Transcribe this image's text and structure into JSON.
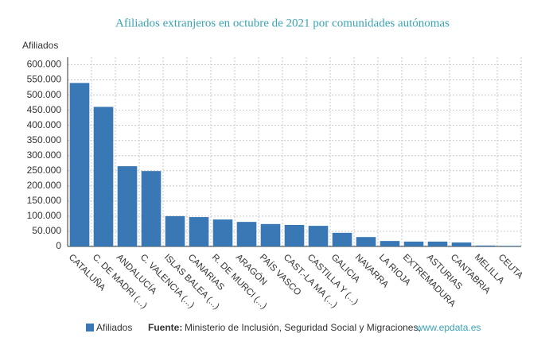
{
  "chart_data": {
    "type": "bar",
    "title": "Afiliados extranjeros en octubre de 2021 por comunidades autónomas",
    "ylabel": "Afiliados",
    "categories": [
      "CATALUÑA",
      "C. DE MADRI (...)",
      "ANDALUCÍA",
      "C. VALENCIA (...)",
      "ISLAS BALEA (...)",
      "CANARIAS",
      "R. DE MURCI (...)",
      "ARAGÓN",
      "PAÍS VASCO",
      "CAST.-LA MA (...)",
      "CASTILLA Y (...)",
      "GALICIA",
      "NAVARRA",
      "LA RIOJA",
      "EXTREMADURA",
      "ASTURIAS",
      "CANTABRIA",
      "MELILLA",
      "CEUTA"
    ],
    "series": [
      {
        "name": "Afiliados",
        "color": "#3a78b5",
        "values": [
          540000,
          461000,
          265000,
          249000,
          100000,
          97000,
          89000,
          81000,
          74000,
          71000,
          68000,
          45000,
          31000,
          18000,
          16000,
          16000,
          13000,
          3000,
          2000
        ]
      }
    ],
    "ylim": [
      0,
      625000
    ],
    "yticks": [
      0,
      {
        "value": 50000,
        "label": "50.000"
      },
      {
        "value": 100000,
        "label": "100.000"
      },
      {
        "value": 150000,
        "label": "150.000"
      },
      {
        "value": 200000,
        "label": "200.000"
      },
      {
        "value": 250000,
        "label": "250.000"
      },
      {
        "value": 300000,
        "label": "300.000"
      },
      {
        "value": 350000,
        "label": "350.000"
      },
      {
        "value": 400000,
        "label": "400.000"
      },
      {
        "value": 450000,
        "label": "450.000"
      },
      {
        "value": 500000,
        "label": "500.000"
      },
      {
        "value": 550000,
        "label": "550.000"
      },
      {
        "value": 600000,
        "label": "600.000"
      }
    ],
    "grid": true,
    "source_label": "Fuente:",
    "source": "Ministerio de Inclusión, Seguridad Social y Migraciones,",
    "source_link": "www.epdata.es"
  }
}
